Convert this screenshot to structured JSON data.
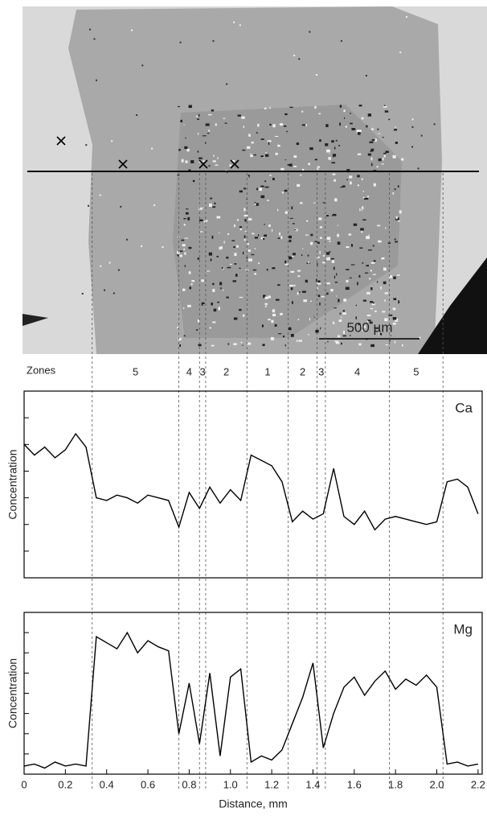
{
  "image": {
    "scale_bar": "500 µm"
  },
  "zones": {
    "title": "Zones",
    "labels": [
      "5",
      "4",
      "3",
      "2",
      "1",
      "2",
      "3",
      "4",
      "5"
    ],
    "boundaries": [
      0.33,
      0.75,
      0.85,
      0.88,
      1.08,
      1.28,
      1.42,
      1.46,
      1.77,
      2.03
    ]
  },
  "chart_data": [
    {
      "type": "line",
      "ylabel": "Concentration",
      "xlim": [
        0,
        2.22
      ],
      "ylim": [
        0,
        7
      ],
      "yticks": [
        1,
        2,
        3,
        4,
        5,
        6
      ],
      "x": [
        0,
        0.05,
        0.1,
        0.15,
        0.2,
        0.25,
        0.3,
        0.35,
        0.4,
        0.45,
        0.5,
        0.55,
        0.6,
        0.65,
        0.7,
        0.75,
        0.8,
        0.85,
        0.9,
        0.95,
        1,
        1.05,
        1.1,
        1.15,
        1.2,
        1.25,
        1.3,
        1.35,
        1.4,
        1.45,
        1.5,
        1.55,
        1.6,
        1.65,
        1.7,
        1.75,
        1.8,
        1.85,
        1.9,
        1.95,
        2,
        2.05,
        2.1,
        2.15,
        2.2
      ],
      "series": [
        {
          "name": "Ca",
          "color": "#000000",
          "values": [
            5.0,
            4.6,
            4.9,
            4.5,
            4.8,
            5.4,
            4.9,
            3.0,
            2.9,
            3.1,
            3.0,
            2.8,
            3.1,
            3.0,
            2.9,
            1.9,
            3.2,
            2.6,
            3.4,
            2.8,
            3.3,
            2.9,
            4.6,
            4.4,
            4.2,
            3.6,
            2.1,
            2.5,
            2.2,
            2.4,
            4.1,
            2.3,
            2.0,
            2.5,
            1.8,
            2.2,
            2.3,
            2.2,
            2.1,
            2.0,
            2.1,
            3.6,
            3.7,
            3.4,
            2.4
          ]
        }
      ]
    },
    {
      "type": "line",
      "ylabel": "Concentration",
      "xlabel": "Distance, mm",
      "xlim": [
        0,
        2.22
      ],
      "ylim": [
        0,
        8
      ],
      "yticks": [
        1,
        2,
        3,
        4,
        5,
        6,
        7
      ],
      "xticks": [
        0,
        0.2,
        0.4,
        0.6,
        0.8,
        {
          "value": 1,
          "label": "1.0"
        },
        1.2,
        1.4,
        1.6,
        1.8,
        {
          "value": 2,
          "label": "2.0"
        },
        2.2
      ],
      "x": [
        0,
        0.05,
        0.1,
        0.15,
        0.2,
        0.25,
        0.3,
        0.35,
        0.4,
        0.45,
        0.5,
        0.55,
        0.6,
        0.65,
        0.7,
        0.75,
        0.8,
        0.85,
        0.9,
        0.95,
        1,
        1.05,
        1.1,
        1.15,
        1.2,
        1.25,
        1.3,
        1.35,
        1.4,
        1.45,
        1.5,
        1.55,
        1.6,
        1.65,
        1.7,
        1.75,
        1.8,
        1.85,
        1.9,
        1.95,
        2,
        2.05,
        2.1,
        2.15,
        2.2
      ],
      "series": [
        {
          "name": "Mg",
          "color": "#000000",
          "values": [
            0.4,
            0.5,
            0.3,
            0.6,
            0.4,
            0.5,
            0.4,
            6.8,
            6.5,
            6.2,
            7.0,
            6.0,
            6.6,
            6.3,
            6.1,
            2.0,
            4.5,
            1.5,
            5.0,
            0.9,
            4.8,
            5.2,
            0.6,
            0.9,
            0.7,
            1.2,
            2.5,
            3.8,
            5.5,
            1.3,
            3.0,
            4.3,
            4.8,
            3.9,
            4.6,
            5.1,
            4.2,
            4.7,
            4.4,
            4.9,
            4.3,
            0.5,
            0.6,
            0.4,
            0.5
          ]
        }
      ]
    }
  ]
}
